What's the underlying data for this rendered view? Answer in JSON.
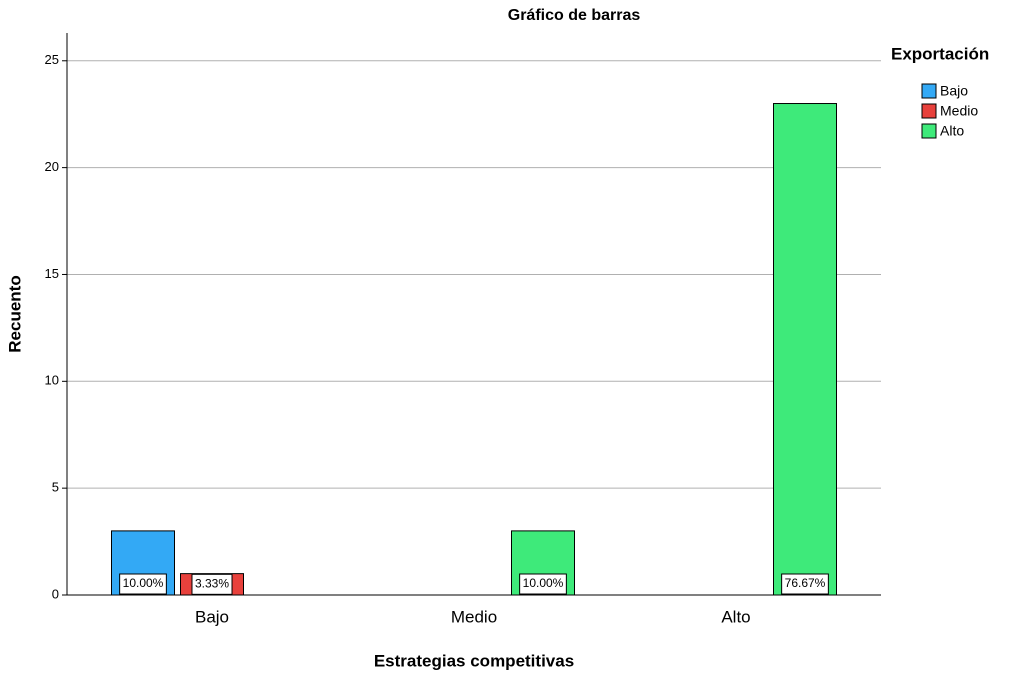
{
  "chart_data": {
    "type": "bar",
    "title": "Gráfico de barras",
    "x_label": "Estrategias competitivas",
    "y_label": "Recuento",
    "legend_title": "Exportación",
    "legend": "right",
    "categories": [
      "Bajo",
      "Medio",
      "Alto"
    ],
    "series": [
      {
        "name": "Bajo",
        "color": "#33a9f5",
        "values": [
          3,
          null,
          null
        ],
        "bar_labels": [
          "10.00%",
          null,
          null
        ]
      },
      {
        "name": "Medio",
        "color": "#e8413c",
        "values": [
          1,
          null,
          null
        ],
        "bar_labels": [
          "3.33%",
          null,
          null
        ]
      },
      {
        "name": "Alto",
        "color": "#3eea7a",
        "values": [
          null,
          3,
          23
        ],
        "bar_labels": [
          null,
          "10.00%",
          "76.67%"
        ]
      }
    ],
    "ylim": [
      0,
      26.3
    ],
    "yticks": [
      0,
      5,
      10,
      15,
      20,
      25
    ],
    "grid": true
  }
}
